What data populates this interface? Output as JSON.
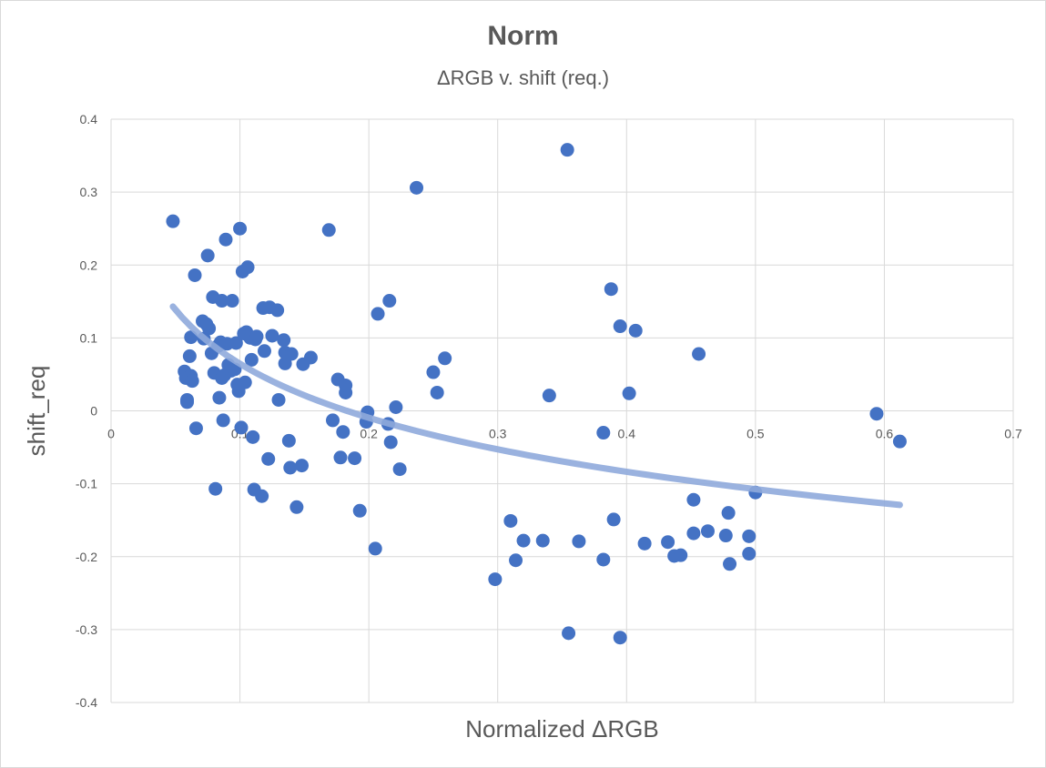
{
  "chart_data": {
    "type": "scatter",
    "title": "Norm",
    "subtitle": "ΔRGB v. shift (req.)",
    "xlabel": "Normalized ΔRGB",
    "ylabel": "shift_req",
    "xlim": [
      0,
      0.7
    ],
    "ylim": [
      -0.4,
      0.4
    ],
    "xticks": [
      0,
      0.1,
      0.2,
      0.3,
      0.4,
      0.5,
      0.6,
      0.7
    ],
    "xtick_labels": [
      "0",
      "0.1",
      "0.2",
      "0.3",
      "0.4",
      "0.5",
      "0.6",
      "0.7"
    ],
    "yticks": [
      -0.4,
      -0.3,
      -0.2,
      -0.1,
      0,
      0.1,
      0.2,
      0.3,
      0.4
    ],
    "ytick_labels": [
      "-0.4",
      "-0.3",
      "-0.2",
      "-0.1",
      "0",
      "0.1",
      "0.2",
      "0.3",
      "0.4"
    ],
    "grid": true,
    "legend": "none",
    "colors": {
      "points": "#4472C4",
      "trendline": "#8FAADC",
      "grid": "#d9d9d9",
      "text": "#595959"
    },
    "trendline": {
      "type": "logarithmic",
      "x_start": 0.048,
      "x_end": 0.612,
      "y_start": 0.143,
      "y_end": -0.129
    },
    "points": [
      [
        0.048,
        0.26
      ],
      [
        0.057,
        0.054
      ],
      [
        0.058,
        0.045
      ],
      [
        0.059,
        0.015
      ],
      [
        0.059,
        0.012
      ],
      [
        0.061,
        0.075
      ],
      [
        0.062,
        0.101
      ],
      [
        0.062,
        0.048
      ],
      [
        0.063,
        0.041
      ],
      [
        0.065,
        0.186
      ],
      [
        0.066,
        -0.024
      ],
      [
        0.071,
        0.123
      ],
      [
        0.072,
        0.099
      ],
      [
        0.074,
        0.119
      ],
      [
        0.075,
        0.213
      ],
      [
        0.076,
        0.113
      ],
      [
        0.078,
        0.079
      ],
      [
        0.079,
        0.156
      ],
      [
        0.08,
        0.052
      ],
      [
        0.081,
        -0.107
      ],
      [
        0.083,
        0.089
      ],
      [
        0.084,
        0.018
      ],
      [
        0.085,
        0.094
      ],
      [
        0.086,
        0.045
      ],
      [
        0.086,
        0.151
      ],
      [
        0.087,
        -0.013
      ],
      [
        0.088,
        0.049
      ],
      [
        0.089,
        0.235
      ],
      [
        0.09,
        0.092
      ],
      [
        0.091,
        0.063
      ],
      [
        0.093,
        0.055
      ],
      [
        0.094,
        0.151
      ],
      [
        0.096,
        0.057
      ],
      [
        0.097,
        0.093
      ],
      [
        0.098,
        0.036
      ],
      [
        0.099,
        0.027
      ],
      [
        0.1,
        0.25
      ],
      [
        0.101,
        -0.023
      ],
      [
        0.102,
        0.191
      ],
      [
        0.103,
        0.106
      ],
      [
        0.104,
        0.039
      ],
      [
        0.105,
        0.108
      ],
      [
        0.106,
        0.197
      ],
      [
        0.108,
        0.1
      ],
      [
        0.109,
        0.07
      ],
      [
        0.11,
        -0.036
      ],
      [
        0.111,
        -0.108
      ],
      [
        0.112,
        0.098
      ],
      [
        0.113,
        0.102
      ],
      [
        0.117,
        -0.117
      ],
      [
        0.118,
        0.141
      ],
      [
        0.119,
        0.082
      ],
      [
        0.122,
        -0.066
      ],
      [
        0.123,
        0.142
      ],
      [
        0.125,
        0.103
      ],
      [
        0.129,
        0.138
      ],
      [
        0.13,
        0.015
      ],
      [
        0.134,
        0.097
      ],
      [
        0.135,
        0.08
      ],
      [
        0.135,
        0.065
      ],
      [
        0.138,
        -0.041
      ],
      [
        0.139,
        -0.078
      ],
      [
        0.14,
        0.078
      ],
      [
        0.144,
        -0.132
      ],
      [
        0.148,
        -0.075
      ],
      [
        0.149,
        0.064
      ],
      [
        0.155,
        0.073
      ],
      [
        0.169,
        0.248
      ],
      [
        0.172,
        -0.013
      ],
      [
        0.176,
        0.043
      ],
      [
        0.178,
        -0.064
      ],
      [
        0.18,
        -0.029
      ],
      [
        0.182,
        0.025
      ],
      [
        0.182,
        0.035
      ],
      [
        0.189,
        -0.065
      ],
      [
        0.193,
        -0.137
      ],
      [
        0.198,
        -0.015
      ],
      [
        0.199,
        -0.002
      ],
      [
        0.205,
        -0.189
      ],
      [
        0.207,
        0.133
      ],
      [
        0.215,
        -0.018
      ],
      [
        0.216,
        0.151
      ],
      [
        0.217,
        -0.043
      ],
      [
        0.221,
        0.005
      ],
      [
        0.224,
        -0.08
      ],
      [
        0.237,
        0.306
      ],
      [
        0.25,
        0.053
      ],
      [
        0.253,
        0.025
      ],
      [
        0.259,
        0.072
      ],
      [
        0.298,
        -0.231
      ],
      [
        0.31,
        -0.151
      ],
      [
        0.314,
        -0.205
      ],
      [
        0.32,
        -0.178
      ],
      [
        0.335,
        -0.178
      ],
      [
        0.34,
        0.021
      ],
      [
        0.354,
        0.358
      ],
      [
        0.355,
        -0.305
      ],
      [
        0.363,
        -0.179
      ],
      [
        0.382,
        -0.204
      ],
      [
        0.382,
        -0.03
      ],
      [
        0.388,
        0.167
      ],
      [
        0.39,
        -0.149
      ],
      [
        0.395,
        -0.311
      ],
      [
        0.395,
        0.116
      ],
      [
        0.402,
        0.024
      ],
      [
        0.407,
        0.11
      ],
      [
        0.414,
        -0.182
      ],
      [
        0.432,
        -0.18
      ],
      [
        0.437,
        -0.199
      ],
      [
        0.442,
        -0.198
      ],
      [
        0.452,
        -0.168
      ],
      [
        0.452,
        -0.122
      ],
      [
        0.456,
        0.078
      ],
      [
        0.463,
        -0.165
      ],
      [
        0.477,
        -0.171
      ],
      [
        0.479,
        -0.14
      ],
      [
        0.48,
        -0.21
      ],
      [
        0.495,
        -0.172
      ],
      [
        0.495,
        -0.196
      ],
      [
        0.5,
        -0.112
      ],
      [
        0.594,
        -0.004
      ],
      [
        0.612,
        -0.042
      ]
    ]
  }
}
